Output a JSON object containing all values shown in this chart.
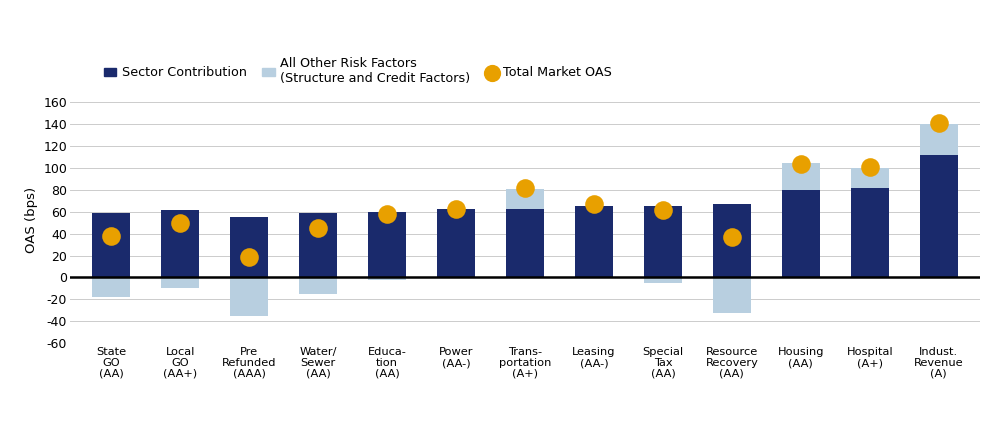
{
  "categories": [
    "State\nGO\n(AA)",
    "Local\nGO\n(AA+)",
    "Pre\nRefunded\n(AAA)",
    "Water/\nSewer\n(AA)",
    "Educa-\ntion\n(AA)",
    "Power\n(AA-)",
    "Trans-\nportation\n(A+)",
    "Leasing\n(AA-)",
    "Special\nTax\n(AA)",
    "Resource\nRecovery\n(AA)",
    "Housing\n(AA)",
    "Hospital\n(A+)",
    "Indust.\nRevenue\n(A)"
  ],
  "sector_contribution": [
    59,
    62,
    55,
    59,
    60,
    63,
    63,
    65,
    65,
    67,
    80,
    82,
    112
  ],
  "other_risk_factors": [
    -18,
    -10,
    -35,
    -15,
    -2,
    0,
    18,
    0,
    -5,
    -32,
    25,
    18,
    28
  ],
  "total_market_oas": [
    38,
    50,
    19,
    45,
    58,
    63,
    82,
    67,
    62,
    37,
    104,
    101,
    141
  ],
  "bar_color_sector": "#1a2a6c",
  "bar_color_other": "#b8cfe0",
  "dot_color": "#e8a000",
  "ylabel": "OAS (bps)",
  "ylim_min": -60,
  "ylim_max": 165,
  "yticks": [
    -60,
    -40,
    -20,
    0,
    20,
    40,
    60,
    80,
    100,
    120,
    140,
    160
  ],
  "legend_sector": "Sector Contribution",
  "legend_other": "All Other Risk Factors\n(Structure and Credit Factors)",
  "legend_dot": "Total Market OAS",
  "background_color": "#ffffff",
  "grid_color": "#cccccc"
}
